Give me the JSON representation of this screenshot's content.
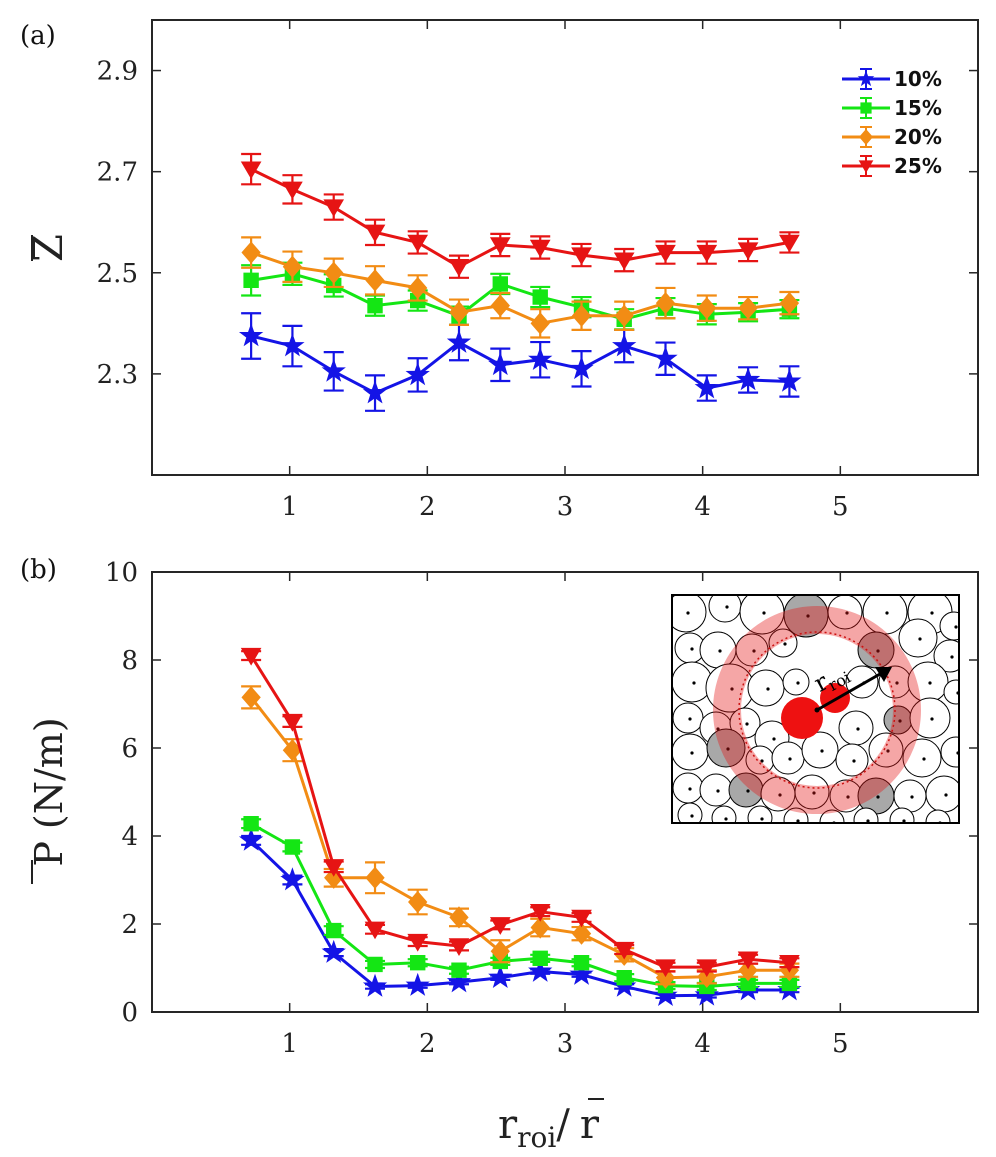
{
  "chart_data": [
    {
      "panel_label": "(a)",
      "type": "line",
      "ylabel_symbol": "Z",
      "x": [
        0.72,
        1.02,
        1.32,
        1.62,
        1.93,
        2.23,
        2.53,
        2.82,
        3.12,
        3.43,
        3.73,
        4.03,
        4.33,
        4.63
      ],
      "xlim": [
        0,
        6
      ],
      "ylim": [
        2.1,
        3.0
      ],
      "x_ticks": [
        1,
        2,
        3,
        4,
        5
      ],
      "x_tick_labels": [
        "1",
        "2",
        "3",
        "4",
        "5"
      ],
      "y_ticks": [
        2.3,
        2.5,
        2.7,
        2.9
      ],
      "y_tick_labels": [
        "2.3",
        "2.5",
        "2.7",
        "2.9"
      ],
      "legend_position": "top-right",
      "series": [
        {
          "name": "10%",
          "color": "#1414e6",
          "marker": "star",
          "values": [
            2.375,
            2.355,
            2.305,
            2.262,
            2.298,
            2.362,
            2.318,
            2.328,
            2.31,
            2.355,
            2.33,
            2.272,
            2.288,
            2.285
          ],
          "errors": [
            0.045,
            0.04,
            0.038,
            0.035,
            0.033,
            0.035,
            0.032,
            0.035,
            0.035,
            0.032,
            0.032,
            0.025,
            0.025,
            0.03
          ]
        },
        {
          "name": "15%",
          "color": "#14e614",
          "marker": "square",
          "values": [
            2.485,
            2.498,
            2.475,
            2.435,
            2.445,
            2.415,
            2.478,
            2.452,
            2.432,
            2.408,
            2.43,
            2.418,
            2.422,
            2.428
          ],
          "errors": [
            0.03,
            0.022,
            0.022,
            0.02,
            0.02,
            0.018,
            0.02,
            0.02,
            0.02,
            0.02,
            0.02,
            0.02,
            0.018,
            0.018
          ]
        },
        {
          "name": "20%",
          "color": "#f28c14",
          "marker": "diamond",
          "values": [
            2.54,
            2.512,
            2.5,
            2.485,
            2.47,
            2.422,
            2.435,
            2.4,
            2.415,
            2.415,
            2.44,
            2.43,
            2.43,
            2.44
          ],
          "errors": [
            0.03,
            0.03,
            0.028,
            0.028,
            0.025,
            0.025,
            0.025,
            0.028,
            0.028,
            0.028,
            0.03,
            0.025,
            0.022,
            0.022
          ]
        },
        {
          "name": "25%",
          "color": "#e61414",
          "marker": "triangle-down",
          "values": [
            2.705,
            2.665,
            2.63,
            2.58,
            2.56,
            2.512,
            2.555,
            2.55,
            2.535,
            2.525,
            2.54,
            2.54,
            2.545,
            2.56
          ],
          "errors": [
            0.03,
            0.028,
            0.025,
            0.025,
            0.022,
            0.022,
            0.022,
            0.022,
            0.022,
            0.022,
            0.022,
            0.022,
            0.022,
            0.02
          ]
        }
      ]
    },
    {
      "panel_label": "(b)",
      "type": "line",
      "ylabel_symbol": "P",
      "ylabel_unit": "(N/m)",
      "xlabel_main": "r",
      "xlabel_sub": "roi",
      "xlabel_sep": "/",
      "xlabel_denominator": "r",
      "x": [
        0.72,
        1.02,
        1.32,
        1.62,
        1.93,
        2.23,
        2.53,
        2.82,
        3.12,
        3.43,
        3.73,
        4.03,
        4.33,
        4.63
      ],
      "xlim": [
        0,
        6
      ],
      "ylim": [
        0,
        10
      ],
      "x_ticks": [
        1,
        2,
        3,
        4,
        5
      ],
      "x_tick_labels": [
        "1",
        "2",
        "3",
        "4",
        "5"
      ],
      "y_ticks": [
        0,
        2,
        4,
        6,
        8,
        10
      ],
      "y_tick_labels": [
        "0",
        "2",
        "4",
        "6",
        "8",
        "10"
      ],
      "series": [
        {
          "name": "10%",
          "color": "#1414e6",
          "marker": "star",
          "values": [
            3.9,
            3.0,
            1.35,
            0.58,
            0.6,
            0.68,
            0.78,
            0.92,
            0.85,
            0.58,
            0.37,
            0.38,
            0.5,
            0.5
          ],
          "errors": [
            0.1,
            0.1,
            0.08,
            0.05,
            0.05,
            0.05,
            0.05,
            0.05,
            0.05,
            0.05,
            0.05,
            0.05,
            0.05,
            0.05
          ]
        },
        {
          "name": "15%",
          "color": "#14e614",
          "marker": "square",
          "values": [
            4.28,
            3.75,
            1.85,
            1.08,
            1.12,
            0.95,
            1.15,
            1.22,
            1.12,
            0.78,
            0.6,
            0.58,
            0.65,
            0.65
          ],
          "errors": [
            0.1,
            0.1,
            0.1,
            0.08,
            0.08,
            0.08,
            0.08,
            0.08,
            0.08,
            0.08,
            0.08,
            0.08,
            0.08,
            0.08
          ]
        },
        {
          "name": "20%",
          "color": "#f28c14",
          "marker": "diamond",
          "values": [
            7.15,
            5.95,
            3.05,
            3.05,
            2.5,
            2.15,
            1.38,
            1.92,
            1.78,
            1.3,
            0.78,
            0.8,
            0.95,
            0.95
          ],
          "errors": [
            0.25,
            0.25,
            0.2,
            0.35,
            0.28,
            0.2,
            0.25,
            0.2,
            0.15,
            0.15,
            0.15,
            0.15,
            0.15,
            0.15
          ]
        },
        {
          "name": "25%",
          "color": "#e61414",
          "marker": "triangle-down",
          "values": [
            8.1,
            6.6,
            3.3,
            1.88,
            1.6,
            1.5,
            1.98,
            2.28,
            2.15,
            1.42,
            1.02,
            1.02,
            1.2,
            1.12
          ],
          "errors": [
            0.1,
            0.12,
            0.12,
            0.1,
            0.1,
            0.1,
            0.1,
            0.1,
            0.1,
            0.1,
            0.1,
            0.1,
            0.1,
            0.1
          ]
        }
      ]
    }
  ],
  "inset": {
    "arrow_label_main": "r",
    "arrow_label_sub": "roi"
  }
}
